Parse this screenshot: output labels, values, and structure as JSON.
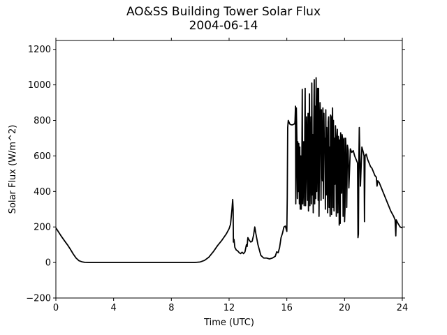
{
  "chart_data": {
    "type": "line",
    "title": "AO&SS Building Tower Solar Flux",
    "subtitle": "2004-06-14",
    "xlabel": "Time (UTC)",
    "ylabel": "Solar Flux (W/m^2)",
    "xlim": [
      0,
      24
    ],
    "ylim": [
      -200,
      1250
    ],
    "xticks": [
      0,
      4,
      8,
      12,
      16,
      20,
      24
    ],
    "yticks": [
      -200,
      0,
      200,
      400,
      600,
      800,
      1000,
      1200
    ],
    "xtick_labels": [
      "0",
      "4",
      "8",
      "12",
      "16",
      "20",
      "24"
    ],
    "ytick_labels": [
      "−200",
      "0",
      "200",
      "400",
      "600",
      "800",
      "1000",
      "1200"
    ],
    "grid": false,
    "line_color": "#000000",
    "series": [
      {
        "points": [
          [
            0,
            195
          ],
          [
            0.2,
            170
          ],
          [
            0.4,
            145
          ],
          [
            0.6,
            122
          ],
          [
            0.8,
            100
          ],
          [
            1.0,
            75
          ],
          [
            1.2,
            48
          ],
          [
            1.4,
            25
          ],
          [
            1.6,
            10
          ],
          [
            1.8,
            4
          ],
          [
            2.0,
            1
          ],
          [
            2.3,
            0
          ],
          [
            3,
            0
          ],
          [
            4,
            0
          ],
          [
            5,
            0
          ],
          [
            6,
            0
          ],
          [
            7,
            0
          ],
          [
            8,
            0
          ],
          [
            9,
            0
          ],
          [
            9.6,
            0
          ],
          [
            10.0,
            3
          ],
          [
            10.3,
            12
          ],
          [
            10.6,
            30
          ],
          [
            10.9,
            60
          ],
          [
            11.2,
            95
          ],
          [
            11.5,
            125
          ],
          [
            11.8,
            160
          ],
          [
            12.0,
            190
          ],
          [
            12.1,
            215
          ],
          [
            12.2,
            300
          ],
          [
            12.25,
            355
          ],
          [
            12.28,
            300
          ],
          [
            12.3,
            115
          ],
          [
            12.34,
            130
          ],
          [
            12.4,
            85
          ],
          [
            12.5,
            70
          ],
          [
            12.6,
            65
          ],
          [
            12.7,
            55
          ],
          [
            12.8,
            50
          ],
          [
            12.9,
            58
          ],
          [
            13.0,
            50
          ],
          [
            13.1,
            60
          ],
          [
            13.2,
            100
          ],
          [
            13.25,
            90
          ],
          [
            13.3,
            140
          ],
          [
            13.4,
            125
          ],
          [
            13.5,
            115
          ],
          [
            13.6,
            120
          ],
          [
            13.7,
            155
          ],
          [
            13.78,
            200
          ],
          [
            13.85,
            165
          ],
          [
            14.0,
            100
          ],
          [
            14.2,
            40
          ],
          [
            14.4,
            25
          ],
          [
            14.6,
            25
          ],
          [
            14.8,
            20
          ],
          [
            15.0,
            25
          ],
          [
            15.2,
            35
          ],
          [
            15.3,
            60
          ],
          [
            15.4,
            55
          ],
          [
            15.5,
            85
          ],
          [
            15.6,
            140
          ],
          [
            15.7,
            165
          ],
          [
            15.8,
            200
          ],
          [
            15.9,
            205
          ],
          [
            16.0,
            175
          ],
          [
            16.03,
            365
          ],
          [
            16.06,
            760
          ],
          [
            16.1,
            800
          ],
          [
            16.2,
            780
          ],
          [
            16.3,
            775
          ],
          [
            16.4,
            775
          ],
          [
            16.5,
            780
          ],
          [
            16.55,
            780
          ],
          [
            16.57,
            800
          ],
          [
            16.6,
            880
          ],
          [
            16.62,
            330
          ],
          [
            16.66,
            870
          ],
          [
            16.7,
            680
          ],
          [
            16.73,
            360
          ],
          [
            16.76,
            680
          ],
          [
            16.8,
            400
          ],
          [
            16.83,
            670
          ],
          [
            16.87,
            330
          ],
          [
            16.9,
            650
          ],
          [
            16.93,
            300
          ],
          [
            16.97,
            600
          ],
          [
            17.0,
            300
          ],
          [
            17.03,
            420
          ],
          [
            17.07,
            975
          ],
          [
            17.1,
            330
          ],
          [
            17.13,
            440
          ],
          [
            17.17,
            680
          ],
          [
            17.2,
            320
          ],
          [
            17.23,
            580
          ],
          [
            17.27,
            980
          ],
          [
            17.3,
            320
          ],
          [
            17.33,
            460
          ],
          [
            17.37,
            820
          ],
          [
            17.4,
            650
          ],
          [
            17.43,
            350
          ],
          [
            17.47,
            840
          ],
          [
            17.5,
            290
          ],
          [
            17.53,
            600
          ],
          [
            17.57,
            950
          ],
          [
            17.6,
            320
          ],
          [
            17.63,
            550
          ],
          [
            17.67,
            820
          ],
          [
            17.7,
            330
          ],
          [
            17.73,
            1010
          ],
          [
            17.77,
            380
          ],
          [
            17.8,
            720
          ],
          [
            17.83,
            280
          ],
          [
            17.87,
            800
          ],
          [
            17.9,
            1030
          ],
          [
            17.93,
            330
          ],
          [
            17.97,
            880
          ],
          [
            18.0,
            360
          ],
          [
            18.03,
            1040
          ],
          [
            18.07,
            400
          ],
          [
            18.1,
            620
          ],
          [
            18.13,
            980
          ],
          [
            18.17,
            350
          ],
          [
            18.2,
            980
          ],
          [
            18.23,
            260
          ],
          [
            18.27,
            720
          ],
          [
            18.3,
            900
          ],
          [
            18.33,
            820
          ],
          [
            18.37,
            350
          ],
          [
            18.4,
            860
          ],
          [
            18.43,
            580
          ],
          [
            18.47,
            460
          ],
          [
            18.5,
            870
          ],
          [
            18.53,
            360
          ],
          [
            18.57,
            840
          ],
          [
            18.6,
            620
          ],
          [
            18.63,
            700
          ],
          [
            18.67,
            300
          ],
          [
            18.7,
            860
          ],
          [
            18.73,
            380
          ],
          [
            18.77,
            760
          ],
          [
            18.8,
            560
          ],
          [
            18.83,
            280
          ],
          [
            18.87,
            790
          ],
          [
            18.9,
            820
          ],
          [
            18.93,
            310
          ],
          [
            18.97,
            650
          ],
          [
            19.0,
            260
          ],
          [
            19.03,
            830
          ],
          [
            19.07,
            820
          ],
          [
            19.1,
            270
          ],
          [
            19.13,
            700
          ],
          [
            19.17,
            870
          ],
          [
            19.2,
            310
          ],
          [
            19.23,
            800
          ],
          [
            19.27,
            290
          ],
          [
            19.3,
            700
          ],
          [
            19.33,
            440
          ],
          [
            19.37,
            770
          ],
          [
            19.4,
            670
          ],
          [
            19.43,
            260
          ],
          [
            19.47,
            700
          ],
          [
            19.5,
            750
          ],
          [
            19.53,
            280
          ],
          [
            19.57,
            710
          ],
          [
            19.6,
            680
          ],
          [
            19.63,
            210
          ],
          [
            19.67,
            690
          ],
          [
            19.7,
            220
          ],
          [
            19.73,
            730
          ],
          [
            19.77,
            610
          ],
          [
            19.8,
            390
          ],
          [
            19.83,
            720
          ],
          [
            19.87,
            690
          ],
          [
            19.9,
            260
          ],
          [
            19.93,
            690
          ],
          [
            19.97,
            700
          ],
          [
            20.0,
            230
          ],
          [
            20.03,
            300
          ],
          [
            20.07,
            700
          ],
          [
            20.1,
            650
          ],
          [
            20.15,
            310
          ],
          [
            20.2,
            660
          ],
          [
            20.25,
            630
          ],
          [
            20.3,
            420
          ],
          [
            20.4,
            640
          ],
          [
            20.5,
            620
          ],
          [
            20.6,
            630
          ],
          [
            20.7,
            600
          ],
          [
            20.8,
            580
          ],
          [
            20.9,
            560
          ],
          [
            20.93,
            140
          ],
          [
            20.96,
            160
          ],
          [
            20.99,
            560
          ],
          [
            21.02,
            760
          ],
          [
            21.05,
            640
          ],
          [
            21.1,
            430
          ],
          [
            21.2,
            650
          ],
          [
            21.3,
            620
          ],
          [
            21.35,
            600
          ],
          [
            21.38,
            230
          ],
          [
            21.42,
            600
          ],
          [
            21.5,
            610
          ],
          [
            21.6,
            580
          ],
          [
            21.7,
            560
          ],
          [
            21.8,
            540
          ],
          [
            21.9,
            530
          ],
          [
            22.0,
            510
          ],
          [
            22.1,
            490
          ],
          [
            22.2,
            480
          ],
          [
            22.25,
            430
          ],
          [
            22.3,
            460
          ],
          [
            22.4,
            450
          ],
          [
            22.6,
            410
          ],
          [
            22.8,
            370
          ],
          [
            23.0,
            330
          ],
          [
            23.2,
            290
          ],
          [
            23.4,
            260
          ],
          [
            23.5,
            240
          ],
          [
            23.55,
            150
          ],
          [
            23.58,
            240
          ],
          [
            23.7,
            220
          ],
          [
            23.85,
            200
          ],
          [
            24.0,
            195
          ]
        ]
      }
    ]
  }
}
